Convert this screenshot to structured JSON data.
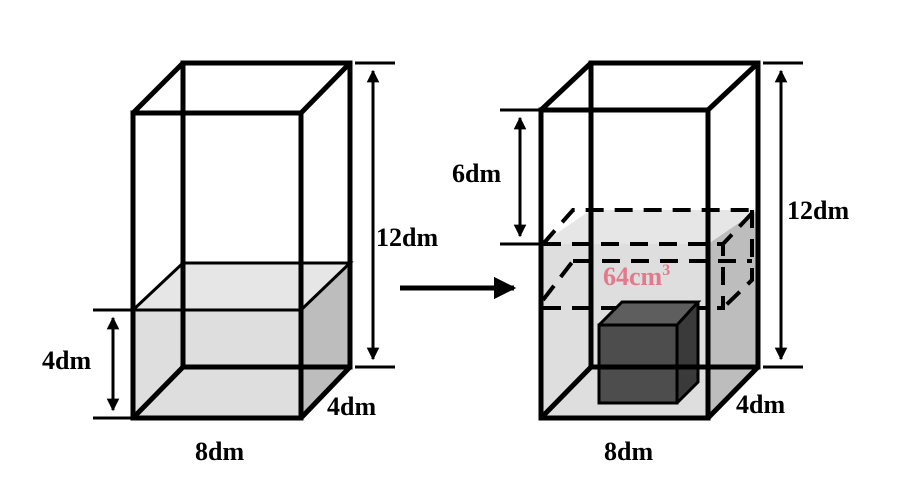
{
  "colors": {
    "water_front": "#dedede",
    "water_top": "#e6e6e6",
    "water_side": "#bdbdbd",
    "block_front": "#4d4d4d",
    "block_top": "#5e5e5e",
    "block_side": "#3a3a3a",
    "accent_text": "#e07a8c"
  },
  "left_tank": {
    "width_label": "8dm",
    "depth_label": "4dm",
    "height_label": "12dm",
    "water_height_label": "4dm"
  },
  "right_tank": {
    "width_label": "8dm",
    "depth_label": "4dm",
    "height_label": "12dm",
    "rise_label": "6dm",
    "block_label_main": "64cm",
    "block_label_sup": "3"
  }
}
